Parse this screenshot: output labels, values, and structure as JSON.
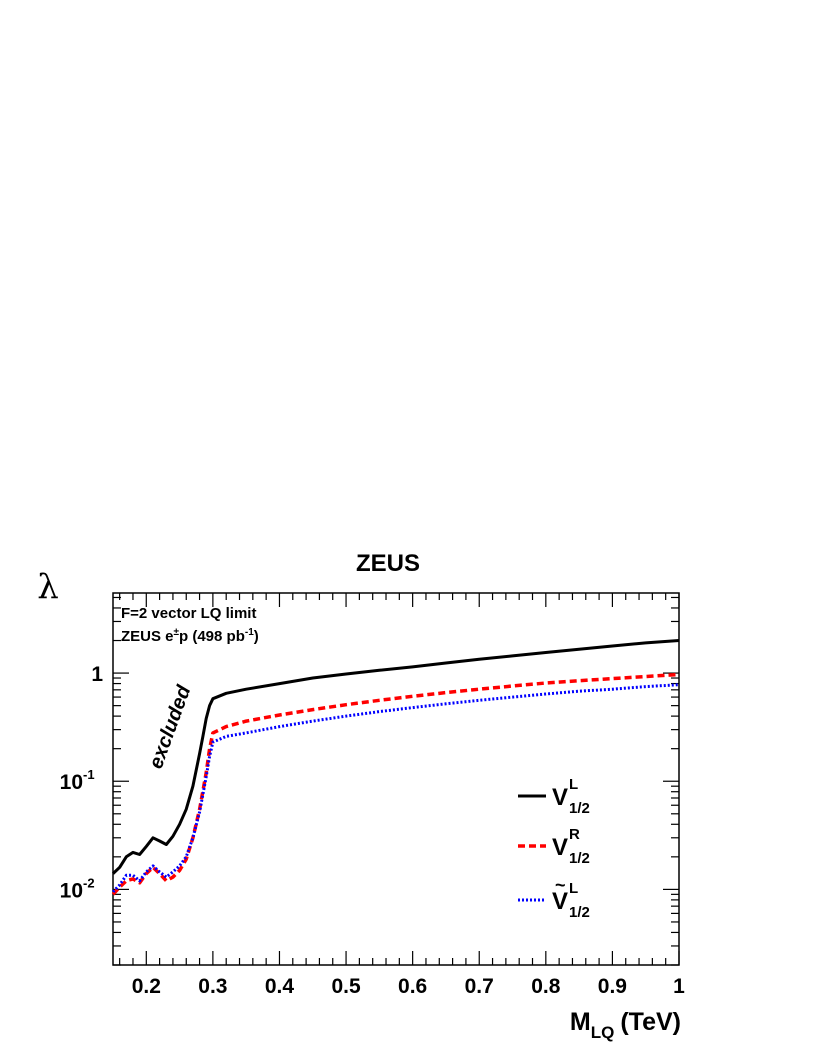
{
  "chart_data": {
    "type": "line",
    "title": "ZEUS",
    "xlabel_main": "M",
    "xlabel_sub": "LQ",
    "xlabel_unit": "(TeV)",
    "ylabel": "λ",
    "xlim": [
      0.15,
      1.0
    ],
    "ylim": [
      0.002,
      5.5
    ],
    "yscale": "log",
    "grid": false,
    "xticks": [
      0.2,
      0.3,
      0.4,
      0.5,
      0.6,
      0.7,
      0.8,
      0.9,
      1
    ],
    "xtick_labels": [
      "0.2",
      "0.3",
      "0.4",
      "0.5",
      "0.6",
      "0.7",
      "0.8",
      "0.9",
      "1"
    ],
    "yticks": [
      {
        "value": 0.01,
        "base": "10",
        "exp": "-2"
      },
      {
        "value": 0.1,
        "base": "10",
        "exp": "-1"
      },
      {
        "value": 1,
        "base": "1",
        "exp": ""
      }
    ],
    "annotations": {
      "line1": "F=2 vector LQ limit",
      "line2_prefix": "ZEUS e",
      "line2_sup": "±",
      "line2_mid": "p (498 pb",
      "line2_sup2": "-1",
      "line2_suffix": ")",
      "excluded": "excluded"
    },
    "legend_position": "right",
    "series": [
      {
        "name_base": "V",
        "name_sup": "L",
        "name_sub": "1/2",
        "tilde": false,
        "color": "#000000",
        "style": "solid",
        "x": [
          0.15,
          0.16,
          0.17,
          0.18,
          0.19,
          0.2,
          0.21,
          0.22,
          0.23,
          0.24,
          0.25,
          0.26,
          0.27,
          0.28,
          0.285,
          0.29,
          0.295,
          0.3,
          0.32,
          0.35,
          0.4,
          0.45,
          0.5,
          0.55,
          0.6,
          0.65,
          0.7,
          0.75,
          0.8,
          0.85,
          0.9,
          0.95,
          1.0
        ],
        "y": [
          0.014,
          0.016,
          0.02,
          0.022,
          0.021,
          0.025,
          0.03,
          0.028,
          0.026,
          0.031,
          0.04,
          0.055,
          0.09,
          0.18,
          0.26,
          0.38,
          0.5,
          0.58,
          0.65,
          0.71,
          0.8,
          0.9,
          0.98,
          1.06,
          1.14,
          1.24,
          1.34,
          1.44,
          1.55,
          1.66,
          1.78,
          1.9,
          2.0
        ]
      },
      {
        "name_base": "V",
        "name_sup": "R",
        "name_sub": "1/2",
        "tilde": false,
        "color": "#ff0000",
        "style": "dashed",
        "x": [
          0.15,
          0.16,
          0.17,
          0.18,
          0.19,
          0.2,
          0.21,
          0.22,
          0.23,
          0.24,
          0.25,
          0.26,
          0.27,
          0.28,
          0.29,
          0.295,
          0.3,
          0.32,
          0.35,
          0.4,
          0.45,
          0.5,
          0.55,
          0.6,
          0.65,
          0.7,
          0.75,
          0.8,
          0.85,
          0.9,
          0.95,
          1.0
        ],
        "y": [
          0.009,
          0.0105,
          0.012,
          0.0125,
          0.0115,
          0.014,
          0.016,
          0.014,
          0.012,
          0.013,
          0.015,
          0.019,
          0.03,
          0.055,
          0.12,
          0.2,
          0.28,
          0.32,
          0.36,
          0.41,
          0.46,
          0.51,
          0.56,
          0.61,
          0.66,
          0.71,
          0.76,
          0.81,
          0.85,
          0.89,
          0.93,
          0.97
        ]
      },
      {
        "name_base": "V",
        "name_sup": "L",
        "name_sub": "1/2",
        "tilde": true,
        "color": "#0000ff",
        "style": "dotted",
        "x": [
          0.15,
          0.16,
          0.17,
          0.18,
          0.19,
          0.2,
          0.21,
          0.22,
          0.23,
          0.24,
          0.25,
          0.26,
          0.27,
          0.28,
          0.29,
          0.295,
          0.3,
          0.32,
          0.35,
          0.4,
          0.45,
          0.5,
          0.55,
          0.6,
          0.65,
          0.7,
          0.75,
          0.8,
          0.85,
          0.9,
          0.95,
          1.0
        ],
        "y": [
          0.0095,
          0.011,
          0.0135,
          0.0135,
          0.012,
          0.0145,
          0.0165,
          0.0145,
          0.013,
          0.0145,
          0.0165,
          0.02,
          0.03,
          0.052,
          0.11,
          0.17,
          0.23,
          0.26,
          0.28,
          0.32,
          0.36,
          0.4,
          0.44,
          0.48,
          0.52,
          0.56,
          0.6,
          0.64,
          0.68,
          0.71,
          0.75,
          0.78
        ]
      }
    ]
  }
}
